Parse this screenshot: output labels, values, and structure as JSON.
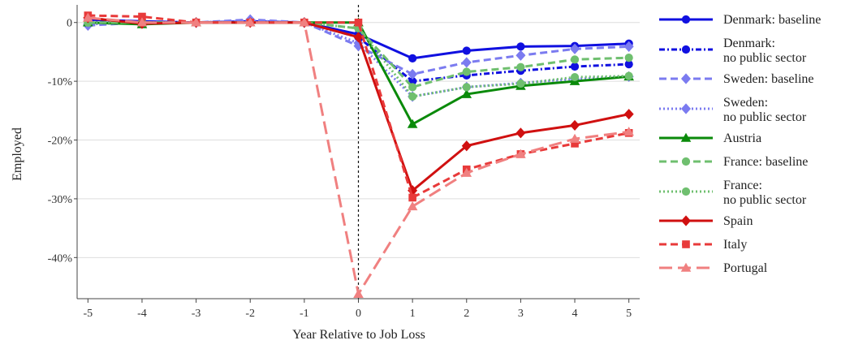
{
  "chart_data": {
    "type": "line",
    "title": "",
    "xlabel": "Year Relative to Job Loss",
    "ylabel": "Employed",
    "x": [
      -5,
      -4,
      -3,
      -2,
      -1,
      0,
      1,
      2,
      3,
      4,
      5
    ],
    "x_tick_labels": [
      "-5",
      "-4",
      "-3",
      "-2",
      "-1",
      "0",
      "1",
      "2",
      "3",
      "4",
      "5"
    ],
    "ylim": [
      -47,
      3
    ],
    "y_ticks": [
      0,
      -10,
      -20,
      -30,
      -40
    ],
    "y_tick_labels": [
      "0",
      "-10%",
      "-20%",
      "-30%",
      "-40%"
    ],
    "grid": "horizontal",
    "reference_line_x": 0,
    "legend_position": "right",
    "series": [
      {
        "name": "Denmark: baseline",
        "name_lines": [
          "Denmark: baseline"
        ],
        "color": "#1010e0",
        "dash": "solid",
        "marker": "circle",
        "values": [
          0.5,
          0.2,
          0,
          0.2,
          0,
          -2,
          -6.1,
          -4.8,
          -4.1,
          -4.0,
          -3.6
        ]
      },
      {
        "name": "Denmark: no public sector",
        "name_lines": [
          "Denmark:",
          "no public sector"
        ],
        "color": "#1010e0",
        "dash": "dashdot",
        "marker": "circle",
        "values": [
          0.3,
          0,
          0,
          0,
          0,
          -2.5,
          -10,
          -9,
          -8.2,
          -7.5,
          -7.1
        ]
      },
      {
        "name": "Sweden: baseline",
        "name_lines": [
          "Sweden: baseline"
        ],
        "color": "#7b7bf0",
        "dash": "dashed",
        "marker": "diamond",
        "values": [
          -0.5,
          0,
          0,
          0.5,
          0,
          -4,
          -8.8,
          -6.8,
          -5.6,
          -4.5,
          -4.1
        ]
      },
      {
        "name": "Sweden: no public sector",
        "name_lines": [
          "Sweden:",
          "no public sector"
        ],
        "color": "#7b7bf0",
        "dash": "dotted",
        "marker": "diamond",
        "values": [
          -0.3,
          0,
          0,
          0.3,
          0,
          -3.5,
          -12.6,
          -11,
          -10.3,
          -9.6,
          -9.2
        ]
      },
      {
        "name": "Austria",
        "name_lines": [
          "Austria"
        ],
        "color": "#0a8a0a",
        "dash": "solid",
        "marker": "triangle",
        "values": [
          0,
          -0.3,
          0,
          0,
          0,
          0,
          -17.3,
          -12.2,
          -10.8,
          -10,
          -9.2
        ]
      },
      {
        "name": "France: baseline",
        "name_lines": [
          "France: baseline"
        ],
        "color": "#6fbf6f",
        "dash": "dashed",
        "marker": "circle",
        "values": [
          0,
          0,
          0,
          0,
          0,
          -1,
          -11,
          -8.4,
          -7.6,
          -6.3,
          -6.0
        ]
      },
      {
        "name": "France: no public sector",
        "name_lines": [
          "France:",
          "no public sector"
        ],
        "color": "#6fbf6f",
        "dash": "dotted",
        "marker": "circle",
        "values": [
          0,
          0,
          0,
          0,
          0,
          -1,
          -12.6,
          -11.0,
          -10.4,
          -9.3,
          -9.1
        ]
      },
      {
        "name": "Spain",
        "name_lines": [
          "Spain"
        ],
        "color": "#d01010",
        "dash": "solid",
        "marker": "diamond",
        "values": [
          0.8,
          -0.2,
          0,
          0,
          0,
          -2.5,
          -28.6,
          -21.0,
          -18.8,
          -17.5,
          -15.6
        ]
      },
      {
        "name": "Italy",
        "name_lines": [
          "Italy"
        ],
        "color": "#e83a3a",
        "dash": "dashed",
        "marker": "square",
        "values": [
          1.2,
          1.0,
          0,
          0,
          0,
          0,
          -29.8,
          -25.0,
          -22.4,
          -20.6,
          -18.8
        ]
      },
      {
        "name": "Portugal",
        "name_lines": [
          "Portugal"
        ],
        "color": "#f08080",
        "dash": "longdash",
        "marker": "triangle",
        "values": [
          0.8,
          0,
          0,
          0,
          0,
          -46.2,
          -31.3,
          -25.6,
          -22.4,
          -19.8,
          -18.6
        ]
      }
    ]
  }
}
